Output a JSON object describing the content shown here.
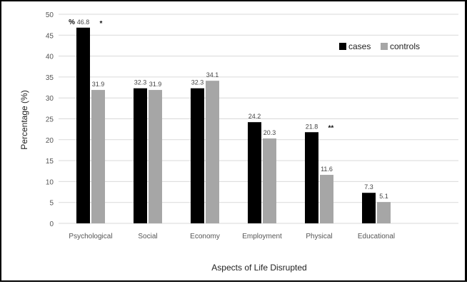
{
  "chart_data": {
    "type": "bar",
    "categories": [
      "Psychological",
      "Social",
      "Economy",
      "Employment",
      "Physical",
      "Educational"
    ],
    "series": [
      {
        "name": "cases",
        "values": [
          46.8,
          32.3,
          32.3,
          24.2,
          21.8,
          7.3
        ],
        "color": "#000000"
      },
      {
        "name": "controls",
        "values": [
          31.9,
          31.9,
          34.1,
          20.3,
          11.6,
          5.1
        ],
        "color": "#a6a6a6"
      }
    ],
    "ylim": [
      0,
      50
    ],
    "yticks": [
      0,
      5,
      10,
      15,
      20,
      25,
      30,
      35,
      40,
      45,
      50
    ],
    "xlabel": "Aspects of Life Disrupted",
    "ylabel": "Percentage (%)",
    "grid": true,
    "legend": "top-right",
    "annotations": [
      {
        "category": "Psychological",
        "text": "*"
      },
      {
        "category": "Psychological",
        "text": "%"
      },
      {
        "category": "Physical",
        "text": "**"
      }
    ]
  }
}
